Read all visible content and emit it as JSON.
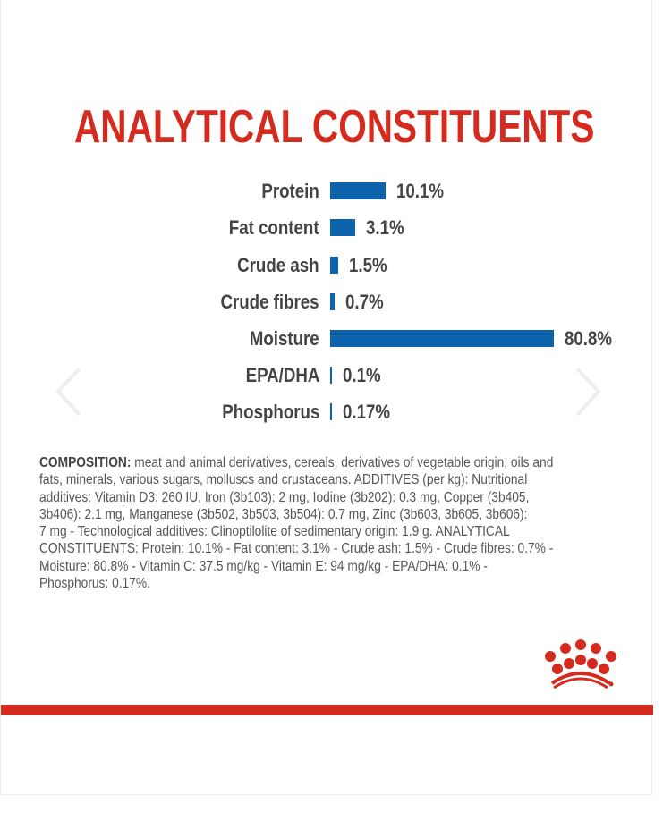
{
  "title": "ANALYTICAL CONSTITUENTS",
  "colors": {
    "accent": "#d52b1e",
    "bar": "#0e63ad"
  },
  "chart_data": {
    "type": "bar",
    "orientation": "horizontal",
    "categories": [
      "Protein",
      "Fat content",
      "Crude ash",
      "Crude fibres",
      "Moisture",
      "EPA/DHA",
      "Phosphorus"
    ],
    "values": [
      10.1,
      3.1,
      1.5,
      0.7,
      80.8,
      0.1,
      0.17
    ],
    "labels": [
      "10.1%",
      "3.1%",
      "1.5%",
      "0.7%",
      "80.8%",
      "0.1%",
      "0.17%"
    ],
    "unit": "%"
  },
  "composition": {
    "heading": "COMPOSITION:",
    "lines": [
      " meat and animal derivatives, cereals, derivatives of vegetable origin, oils and",
      "fats, minerals, various sugars, molluscs and crustaceans. ADDITIVES (per kg): Nutritional",
      "additives: Vitamin D3: 260 IU, Iron (3b103): 2 mg, Iodine (3b202): 0.3 mg, Copper (3b405,",
      "3b406): 2.1 mg, Manganese (3b502, 3b503, 3b504): 0.7 mg, Zinc (3b603, 3b605, 3b606):",
      "7 mg - Technological additives: Clinoptilolite of sedimentary origin: 1.9 g. ANALYTICAL",
      "CONSTITUENTS: Protein: 10.1% - Fat content: 3.1% - Crude ash: 1.5% - Crude fibres: 0.7% -",
      "Moisture: 80.8% - Vitamin C: 37.5 mg/kg - Vitamin E: 94 mg/kg - EPA/DHA: 0.1% -",
      "Phosphorus: 0.17%."
    ]
  },
  "icons": {
    "prev": "chevron-left-icon",
    "next": "chevron-right-icon",
    "logo": "royal-canin-crown-logo"
  }
}
